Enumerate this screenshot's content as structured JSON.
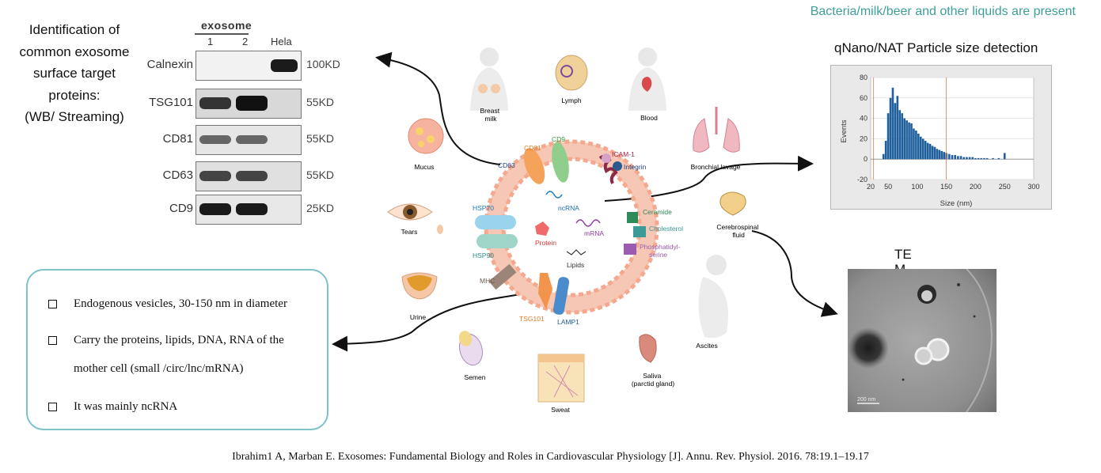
{
  "wb_title": [
    "Identification of",
    "common exosome",
    "surface target",
    "proteins:",
    "(WB/ Streaming)"
  ],
  "western_blot": {
    "group_label": "exosome",
    "lanes": [
      "1",
      "2",
      "Hela"
    ],
    "rows": [
      {
        "protein": "Calnexin",
        "kd": "100KD"
      },
      {
        "protein": "TSG101",
        "kd": "55KD"
      },
      {
        "protein": "CD81",
        "kd": "55KD"
      },
      {
        "protein": "CD63",
        "kd": "55KD"
      },
      {
        "protein": "CD9",
        "kd": "25KD"
      }
    ]
  },
  "top_right_note": "Bacteria/milk/beer and other liquids are present",
  "qnano_title": "qNano/NAT Particle size detection",
  "tem_title": "TE\nM",
  "tem_scale": "200 nm",
  "info_bullets": [
    "Endogenous vesicles, 30-150 nm in diameter",
    "Carry the proteins, lipids, DNA, RNA of the",
    "mother cell (small /circ/lnc/mRNA)",
    "It was mainly  ncRNA"
  ],
  "citation": "Ibrahim1 A, Marban E. Exosomes: Fundamental Biology and Roles in Cardiovascular Physiology [J]. Annu. Rev. Physiol. 2016. 78:19.1–19.17",
  "body_fluids": {
    "breast_milk": "Breast\nmilk",
    "lymph": "Lymph",
    "blood": "Blood",
    "mucus": "Mucus",
    "bronchial_lavage": "Bronchial lavage",
    "tears": "Tears",
    "csf": "Cerebrospinal\nfluid",
    "urine": "Urine",
    "semen": "Semen",
    "sweat": "Sweat",
    "saliva": "Saliva\n(parctid gland)",
    "ascites": "Ascites"
  },
  "exosome_labels": {
    "cd63": "CD63",
    "cd81": "CD81",
    "cd9": "CD9",
    "icam1": "ICAM-1",
    "integrin": "Integrin",
    "ncrna": "ncRNA",
    "hsp70": "HSP70",
    "hsp90": "HSP90",
    "protein": "Protein",
    "mrna": "mRNA",
    "lipids": "Lipids",
    "ceramide": "Ceramide",
    "cholesterol": "Cholesterol",
    "phosphatidylserine": "Phosphatidyl-\nserine",
    "mhc": "MHC",
    "tsg101": "TSG101",
    "lamp1": "LAMP1"
  },
  "chart_data": {
    "type": "bar",
    "xlabel": "Size (nm)",
    "ylabel": "Events",
    "xlim": [
      20,
      300
    ],
    "ylim": [
      -20,
      80
    ],
    "x_ticks": [
      "20",
      "50",
      "100",
      "150",
      "200",
      "250",
      "300"
    ],
    "y_ticks": [
      "80",
      "60",
      "40",
      "20",
      "0",
      "-20"
    ],
    "markers_x": [
      25,
      150
    ],
    "x": [
      42,
      46,
      50,
      54,
      58,
      62,
      66,
      70,
      74,
      78,
      82,
      86,
      90,
      94,
      98,
      102,
      106,
      110,
      114,
      118,
      122,
      126,
      130,
      134,
      138,
      142,
      146,
      150,
      155,
      160,
      165,
      170,
      175,
      180,
      185,
      190,
      195,
      200,
      205,
      210,
      215,
      220,
      230,
      240,
      250
    ],
    "values": [
      5,
      18,
      45,
      60,
      70,
      55,
      62,
      48,
      45,
      40,
      38,
      36,
      35,
      30,
      28,
      25,
      22,
      20,
      18,
      16,
      15,
      13,
      12,
      10,
      9,
      8,
      7,
      6,
      5,
      4,
      4,
      3,
      3,
      2,
      2,
      2,
      2,
      1,
      1,
      1,
      1,
      1,
      1,
      1,
      6
    ]
  },
  "colors": {
    "box_border": "#7cc2c6",
    "note_teal": "#3f9e9a",
    "histogram": "#1f5f9c",
    "exosome_membrane": "#f4a98f"
  }
}
